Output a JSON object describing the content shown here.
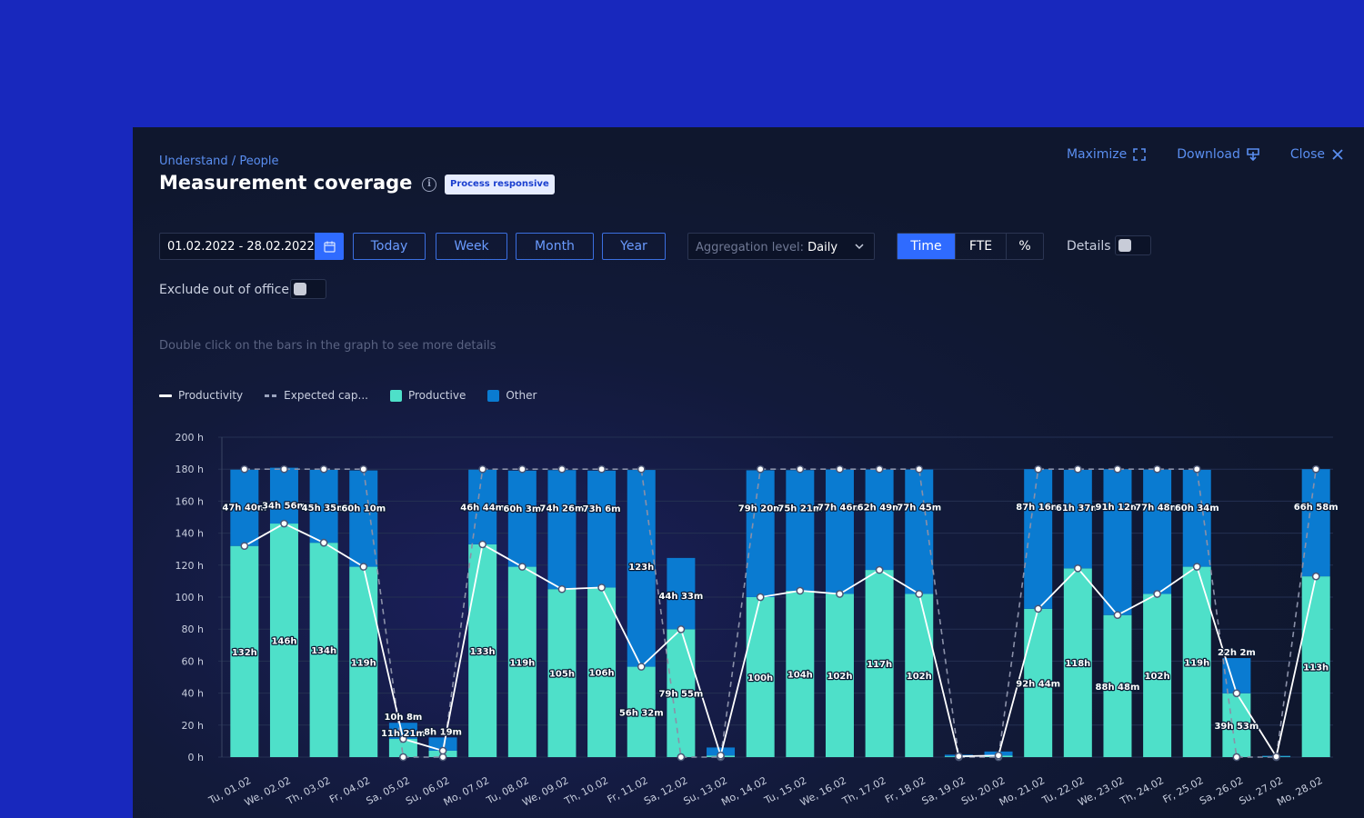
{
  "breadcrumb": "Understand / People",
  "title": "Measurement coverage",
  "badge": "Process responsive",
  "actions": {
    "maximize": "Maximize",
    "download": "Download",
    "close": "Close"
  },
  "date_range": "01.02.2022 - 28.02.2022",
  "range_buttons": [
    "Today",
    "Week",
    "Month",
    "Year"
  ],
  "aggregation": {
    "label": "Aggregation level:",
    "value": "Daily"
  },
  "unit_toggle": {
    "options": [
      "Time",
      "FTE",
      "%"
    ],
    "active": "Time"
  },
  "details_label": "Details",
  "exclude_label": "Exclude out of office",
  "hint": "Double click on the bars in the graph to see more details",
  "legend": [
    {
      "name": "Productivity",
      "kind": "line"
    },
    {
      "name": "Expected cap...",
      "kind": "dash"
    },
    {
      "name": "Productive",
      "kind": "box",
      "color": "#4ee0c9"
    },
    {
      "name": "Other",
      "kind": "box",
      "color": "#0a7bd1"
    }
  ],
  "chart_data": {
    "type": "bar",
    "stacked": true,
    "ylim": [
      0,
      200
    ],
    "y_ticks": [
      0,
      20,
      40,
      60,
      80,
      100,
      120,
      140,
      160,
      180,
      200
    ],
    "y_unit": "h",
    "categories": [
      "Tu, 01.02",
      "We, 02.02",
      "Th, 03.02",
      "Fr, 04.02",
      "Sa, 05.02",
      "Su, 06.02",
      "Mo, 07.02",
      "Tu, 08.02",
      "We, 09.02",
      "Th, 10.02",
      "Fr, 11.02",
      "Sa, 12.02",
      "Su, 13.02",
      "Mo, 14.02",
      "Tu, 15.02",
      "We, 16.02",
      "Th, 17.02",
      "Fr, 18.02",
      "Sa, 19.02",
      "Su, 20.02",
      "Mo, 21.02",
      "Tu, 22.02",
      "We, 23.02",
      "Th, 24.02",
      "Fr, 25.02",
      "Sa, 26.02",
      "Su, 27.02",
      "Mo, 28.02"
    ],
    "series": [
      {
        "name": "Productive",
        "color": "#4ee0c9",
        "values": [
          132,
          146,
          134,
          119,
          11.35,
          4,
          133,
          119,
          105,
          106,
          56.5,
          79.9,
          1,
          100,
          104,
          102,
          117,
          102,
          0.5,
          1,
          92.7,
          118,
          88.8,
          102,
          119,
          39.9,
          0.3,
          113
        ],
        "labels": [
          "132h",
          "146h",
          "134h",
          "119h",
          "11h 21m",
          "",
          "133h",
          "119h",
          "105h",
          "106h",
          "56h 32m",
          "79h 55m",
          "",
          "100h",
          "104h",
          "102h",
          "117h",
          "102h",
          "",
          "",
          "92h 44m",
          "118h",
          "88h 48m",
          "102h",
          "119h",
          "39h 53m",
          "",
          "113h"
        ]
      },
      {
        "name": "Other",
        "color": "#0a7bd1",
        "values": [
          47.7,
          34.9,
          45.6,
          60.2,
          10.1,
          8.3,
          46.7,
          60.1,
          74.4,
          73.1,
          123,
          44.6,
          5,
          79.3,
          75.4,
          77.8,
          62.8,
          77.8,
          1,
          2.5,
          87.3,
          61.6,
          91.2,
          77.8,
          60.6,
          22,
          0.5,
          67
        ],
        "labels": [
          "47h 40m",
          "34h 56m",
          "45h 35m",
          "60h 10m",
          "10h 8m",
          "8h 19m",
          "46h 44m",
          "60h 3m",
          "74h 26m",
          "73h 6m",
          "123h",
          "44h 33m",
          "",
          "79h 20m",
          "75h 21m",
          "77h 46m",
          "62h 49m",
          "77h 45m",
          "",
          "",
          "87h 16m",
          "61h 37m",
          "91h 12m",
          "77h 48m",
          "60h 34m",
          "22h 2m",
          "",
          "66h 58m"
        ]
      },
      {
        "name": "Productivity",
        "kind": "line",
        "color": "#ffffff",
        "values": [
          132,
          146,
          134,
          119,
          11.35,
          4,
          133,
          119,
          105,
          106,
          56.5,
          79.9,
          1,
          100,
          104,
          102,
          117,
          102,
          0.5,
          1,
          92.7,
          118,
          88.8,
          102,
          119,
          39.9,
          0.3,
          113
        ]
      },
      {
        "name": "Expected cap...",
        "kind": "dashed-line",
        "color": "#8a90a8",
        "values": [
          180,
          180,
          180,
          180,
          0,
          0,
          180,
          180,
          180,
          180,
          180,
          0,
          0,
          180,
          180,
          180,
          180,
          180,
          0,
          0,
          180,
          180,
          180,
          180,
          180,
          0,
          0,
          180
        ]
      }
    ]
  }
}
